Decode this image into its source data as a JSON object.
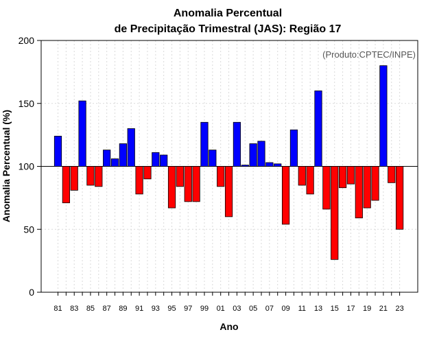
{
  "chart_data": {
    "type": "bar",
    "title_line1": "Anomalia Percentual",
    "title_line2": "de Precipitação Trimestral (JAS): Região 17",
    "xlabel": "Ano",
    "ylabel": "Anomalia Percentual (%)",
    "credit": "(Produto:CPTEC/INPE)",
    "baseline": 100,
    "ylim": [
      0,
      200
    ],
    "yticks": [
      0,
      50,
      100,
      150,
      200
    ],
    "grid": true,
    "colors": {
      "above": "#0000ff",
      "below": "#ff0000",
      "grid": "#d9d9d9",
      "edge": "#000000"
    },
    "categories": [
      "81",
      "82",
      "83",
      "84",
      "85",
      "86",
      "87",
      "88",
      "89",
      "90",
      "91",
      "92",
      "93",
      "94",
      "95",
      "96",
      "97",
      "98",
      "99",
      "00",
      "01",
      "02",
      "03",
      "04",
      "05",
      "06",
      "07",
      "08",
      "09",
      "10",
      "11",
      "12",
      "13",
      "14",
      "15",
      "16",
      "17",
      "18",
      "19",
      "20",
      "21",
      "22",
      "23"
    ],
    "xtick_labels": [
      "81",
      "83",
      "85",
      "87",
      "89",
      "91",
      "93",
      "95",
      "97",
      "99",
      "01",
      "03",
      "05",
      "07",
      "09",
      "11",
      "13",
      "15",
      "17",
      "19",
      "21",
      "23"
    ],
    "values": [
      124,
      71,
      81,
      152,
      85,
      84,
      113,
      106,
      118,
      130,
      78,
      90,
      111,
      109,
      67,
      84,
      72,
      72,
      135,
      113,
      84,
      60,
      135,
      101,
      118,
      120,
      103,
      102,
      54,
      129,
      85,
      78,
      160,
      66,
      26,
      83,
      86,
      59,
      67,
      73,
      180,
      87,
      50
    ]
  }
}
